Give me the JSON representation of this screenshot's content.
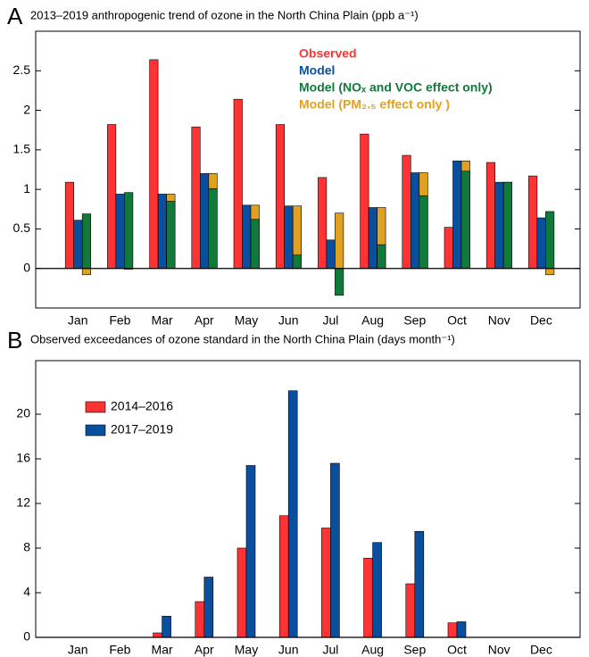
{
  "chart_data": [
    {
      "type": "bar",
      "panel_label": "A",
      "title": "2013–2019 anthropogenic trend of ozone in the North China Plain (ppb a⁻¹)",
      "categories": [
        "Jan",
        "Feb",
        "Mar",
        "Apr",
        "May",
        "Jun",
        "Jul",
        "Aug",
        "Sep",
        "Oct",
        "Nov",
        "Dec"
      ],
      "series": [
        {
          "name": "Observed",
          "color": "#ff3333",
          "values": [
            1.09,
            1.82,
            2.64,
            1.79,
            2.14,
            1.82,
            1.15,
            1.7,
            1.43,
            0.52,
            1.34,
            1.17
          ]
        },
        {
          "name": "Model",
          "color": "#0a4f9e",
          "values": [
            0.61,
            0.94,
            0.94,
            1.2,
            0.8,
            0.79,
            0.36,
            0.77,
            1.21,
            1.36,
            1.09,
            0.64
          ]
        },
        {
          "name": "Model (NOₓ and VOC effect only)",
          "color": "#0f7a3a",
          "values": [
            0.69,
            0.96,
            0.85,
            1.01,
            0.62,
            0.17,
            -0.34,
            0.3,
            0.92,
            1.23,
            1.09,
            0.72
          ]
        },
        {
          "name": "Model (PM₂.₅ effect only )",
          "color": "#e0a020",
          "values": [
            -0.08,
            -0.01,
            0.94,
            1.2,
            0.8,
            0.79,
            0.7,
            0.77,
            1.21,
            1.36,
            1.09,
            -0.08
          ]
        }
      ],
      "ylim": [
        -0.5,
        3
      ],
      "yticks": [
        0,
        0.5,
        1,
        1.5,
        2,
        2.5
      ],
      "legend": "upper center"
    },
    {
      "type": "bar",
      "panel_label": "B",
      "title": "Observed exceedances of ozone standard in the North China Plain (days month⁻¹)",
      "categories": [
        "Jan",
        "Feb",
        "Mar",
        "Apr",
        "May",
        "Jun",
        "Jul",
        "Aug",
        "Sep",
        "Oct",
        "Nov",
        "Dec"
      ],
      "series": [
        {
          "name": "2014–2016",
          "color": "#ff3333",
          "values": [
            0,
            0,
            0.4,
            3.2,
            8.0,
            10.9,
            9.8,
            7.1,
            4.8,
            1.3,
            0,
            0
          ]
        },
        {
          "name": "2017–2019",
          "color": "#0a4f9e",
          "values": [
            0,
            0,
            1.9,
            5.4,
            15.4,
            22.1,
            15.6,
            8.5,
            9.5,
            1.4,
            0,
            0
          ]
        }
      ],
      "ylim": [
        0,
        24.8
      ],
      "yticks": [
        0,
        4,
        8,
        12,
        16,
        20
      ],
      "legend": "upper left"
    }
  ]
}
